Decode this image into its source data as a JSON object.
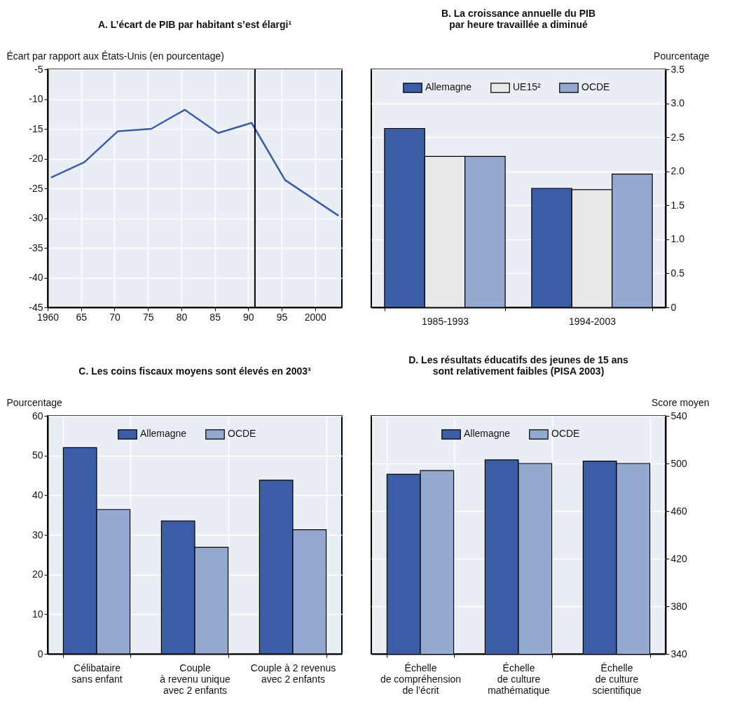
{
  "chart_data": [
    {
      "type": "line",
      "title": "A. L’écart de PIB par habitant s’est élargi¹",
      "ylabel": "Écart par rapport aux États-Unis (en pourcentage)",
      "x": [
        1960.5,
        1965.5,
        1970.5,
        1975.5,
        1980.5,
        1985.5,
        1990.5,
        1995.5,
        2003.5
      ],
      "series": [
        {
          "color": "#3a5da6",
          "values": [
            -23.2,
            -20.6,
            -15.4,
            -15.0,
            -11.8,
            -15.7,
            -14.0,
            -23.6,
            -29.6
          ]
        }
      ],
      "xlim": [
        1960,
        2004
      ],
      "xticks": [
        1960,
        {
          "value": 1965,
          "label": "65"
        },
        {
          "value": 1970,
          "label": "70"
        },
        {
          "value": 1975,
          "label": "75"
        },
        {
          "value": 1980,
          "label": "80"
        },
        {
          "value": 1985,
          "label": "85"
        },
        {
          "value": 1990,
          "label": "90"
        },
        {
          "value": 1995,
          "label": "95"
        },
        2000
      ],
      "ylim": [
        -45,
        -5
      ],
      "yticks": [
        -45,
        -40,
        -35,
        -30,
        -25,
        -20,
        -15,
        -10,
        -5
      ],
      "grid": true,
      "ref_lines": [
        {
          "axis": "x",
          "value": 1991,
          "color": "#000000"
        }
      ]
    },
    {
      "type": "bar",
      "title": "B. La croissance annuelle du PIB\npar heure travaillée a diminué",
      "y2label": "Pourcentage",
      "categories": [
        "1985-1993",
        "1994-2003"
      ],
      "series": [
        {
          "name": "Allemagne",
          "color": "#3a5da6",
          "axis": "y2",
          "values": [
            2.63,
            1.75
          ]
        },
        {
          "name": "UE15²",
          "color": "#e8e8e8",
          "axis": "y2",
          "values": [
            2.22,
            1.73
          ]
        },
        {
          "name": "OCDE",
          "color": "#94a9d0",
          "axis": "y2",
          "values": [
            2.22,
            1.96
          ]
        }
      ],
      "y2lim": [
        0,
        3.5
      ],
      "y2ticks": [
        0,
        0.5,
        {
          "value": 1,
          "label": "1.0"
        },
        1.5,
        {
          "value": 2,
          "label": "2.0"
        },
        2.5,
        {
          "value": 3,
          "label": "3.0"
        },
        3.5
      ],
      "grid": "y",
      "legend": "top"
    },
    {
      "type": "bar",
      "title": "C. Les coins fiscaux moyens sont élevés en 2003³",
      "ylabel": "Pourcentage",
      "categories": [
        "Célibataire\nsans enfant",
        "Couple\nà revenu unique\navec 2 enfants",
        "Couple à 2 revenus\navec 2 enfants"
      ],
      "series": [
        {
          "name": "Allemagne",
          "color": "#3a5da6",
          "values": [
            52.0,
            33.5,
            43.8
          ]
        },
        {
          "name": "OCDE",
          "color": "#94a9d0",
          "values": [
            36.4,
            26.9,
            31.3
          ]
        }
      ],
      "ylim": [
        0,
        60
      ],
      "yticks": [
        0,
        10,
        20,
        30,
        40,
        50,
        60
      ],
      "grid": true,
      "legend": "top"
    },
    {
      "type": "bar",
      "title": "D. Les résultats éducatifs des jeunes de 15 ans\nsont relativement faibles (PISA 2003)",
      "y2label": "Score moyen",
      "categories": [
        "Échelle\nde compréhension\nde l’écrit",
        "Échelle\nde culture\nmathématique",
        "Échelle\nde culture\nscientifique"
      ],
      "series": [
        {
          "name": "Allemagne",
          "color": "#3a5da6",
          "axis": "y2",
          "values": [
            491,
            503,
            502
          ]
        },
        {
          "name": "OCDE",
          "color": "#94a9d0",
          "axis": "y2",
          "values": [
            494,
            500,
            500
          ]
        }
      ],
      "y2lim": [
        340,
        540
      ],
      "y2ticks": [
        340,
        380,
        420,
        460,
        500,
        540
      ],
      "grid": true,
      "legend": "top"
    }
  ]
}
